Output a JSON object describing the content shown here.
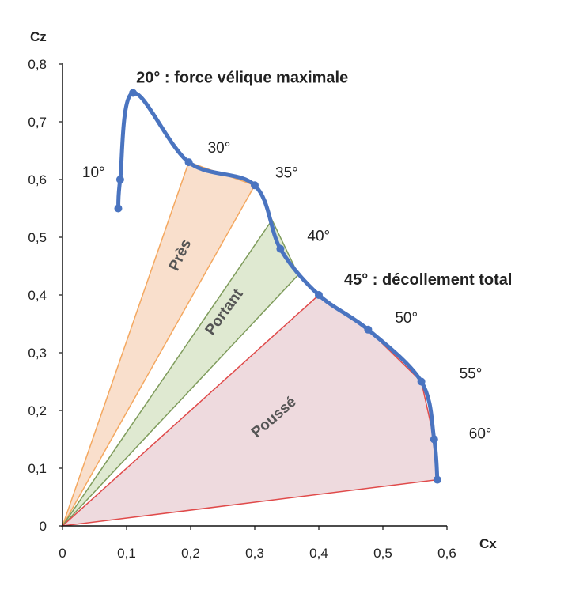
{
  "chart_data": {
    "type": "line",
    "title": "",
    "xlabel": "Cx",
    "ylabel": "Cz",
    "xlim": [
      0,
      0.6
    ],
    "ylim": [
      0,
      0.8
    ],
    "x_ticks": [
      "0",
      "0,1",
      "0,2",
      "0,3",
      "0,4",
      "0,5",
      "0,6"
    ],
    "y_ticks": [
      "0",
      "0,1",
      "0,2",
      "0,3",
      "0,4",
      "0,5",
      "0,6",
      "0,7",
      "0,8"
    ],
    "grid": false,
    "series": [
      {
        "color": "#4a74c0",
        "points": [
          {
            "x": 0.087,
            "y": 0.55
          },
          {
            "x": 0.09,
            "y": 0.6
          },
          {
            "x": 0.11,
            "y": 0.75
          },
          {
            "x": 0.197,
            "y": 0.63
          },
          {
            "x": 0.3,
            "y": 0.59
          },
          {
            "x": 0.34,
            "y": 0.48
          },
          {
            "x": 0.4,
            "y": 0.4
          },
          {
            "x": 0.477,
            "y": 0.34
          },
          {
            "x": 0.56,
            "y": 0.25
          },
          {
            "x": 0.58,
            "y": 0.15
          },
          {
            "x": 0.585,
            "y": 0.08
          }
        ]
      }
    ],
    "angle_labels": [
      {
        "text": "10°",
        "x": 0.09,
        "y": 0.6
      },
      {
        "text": "30°",
        "x": 0.197,
        "y": 0.63
      },
      {
        "text": "35°",
        "x": 0.3,
        "y": 0.59
      },
      {
        "text": "40°",
        "x": 0.34,
        "y": 0.48
      },
      {
        "text": "50°",
        "x": 0.477,
        "y": 0.34
      },
      {
        "text": "55°",
        "x": 0.56,
        "y": 0.25
      },
      {
        "text": "60°",
        "x": 0.58,
        "y": 0.15
      }
    ],
    "annotations": [
      {
        "text": "20° : force vélique maximale",
        "x": 0.11,
        "y": 0.75
      },
      {
        "text": "45° : décollement total",
        "x": 0.4,
        "y": 0.4
      }
    ],
    "regions": [
      {
        "name": "Près",
        "fill": "#f8dcc6",
        "stroke": "#f4a860",
        "vertices": [
          [
            0,
            0
          ],
          [
            0.197,
            0.63
          ],
          [
            0.3,
            0.59
          ]
        ]
      },
      {
        "name": "Portant",
        "fill": "#dce7cc",
        "stroke": "#7f9c5c",
        "vertices": [
          [
            0,
            0
          ],
          [
            0.327,
            0.53
          ],
          [
            0.368,
            0.435
          ]
        ]
      },
      {
        "name": "Poussé",
        "fill": "#ecd6da",
        "stroke": "#e04a4a",
        "vertices": [
          [
            0,
            0
          ],
          [
            0.4,
            0.4
          ],
          [
            0.477,
            0.34
          ],
          [
            0.56,
            0.25
          ],
          [
            0.58,
            0.15
          ],
          [
            0.585,
            0.08
          ]
        ]
      }
    ]
  }
}
